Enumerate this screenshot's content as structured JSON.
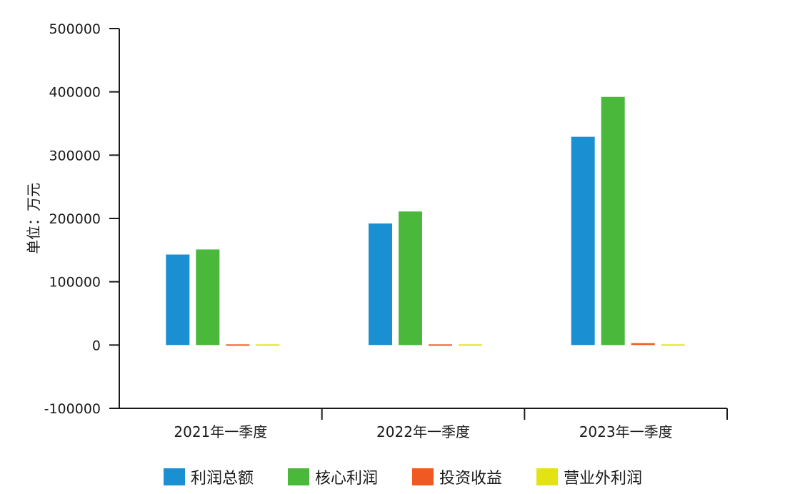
{
  "chart_data": {
    "type": "bar",
    "ylabel": "单位：万元",
    "xlabel": "",
    "categories": [
      "2021年一季度",
      "2022年一季度",
      "2023年一季度"
    ],
    "series": [
      {
        "name": "利润总额",
        "color": "#1a8fd1",
        "values": [
          143000,
          192000,
          329000
        ]
      },
      {
        "name": "核心利润",
        "color": "#4ab83a",
        "values": [
          151000,
          211000,
          392000
        ]
      },
      {
        "name": "投资收益",
        "color": "#f05a22",
        "values": [
          500,
          200,
          3000
        ]
      },
      {
        "name": "营业外利润",
        "color": "#e3e314",
        "values": [
          300,
          300,
          300
        ]
      }
    ],
    "ylim": [
      -100000,
      500000
    ],
    "yticks": [
      500000,
      400000,
      300000,
      200000,
      100000,
      0,
      -100000
    ],
    "grid": false,
    "legend_position": "bottom"
  }
}
